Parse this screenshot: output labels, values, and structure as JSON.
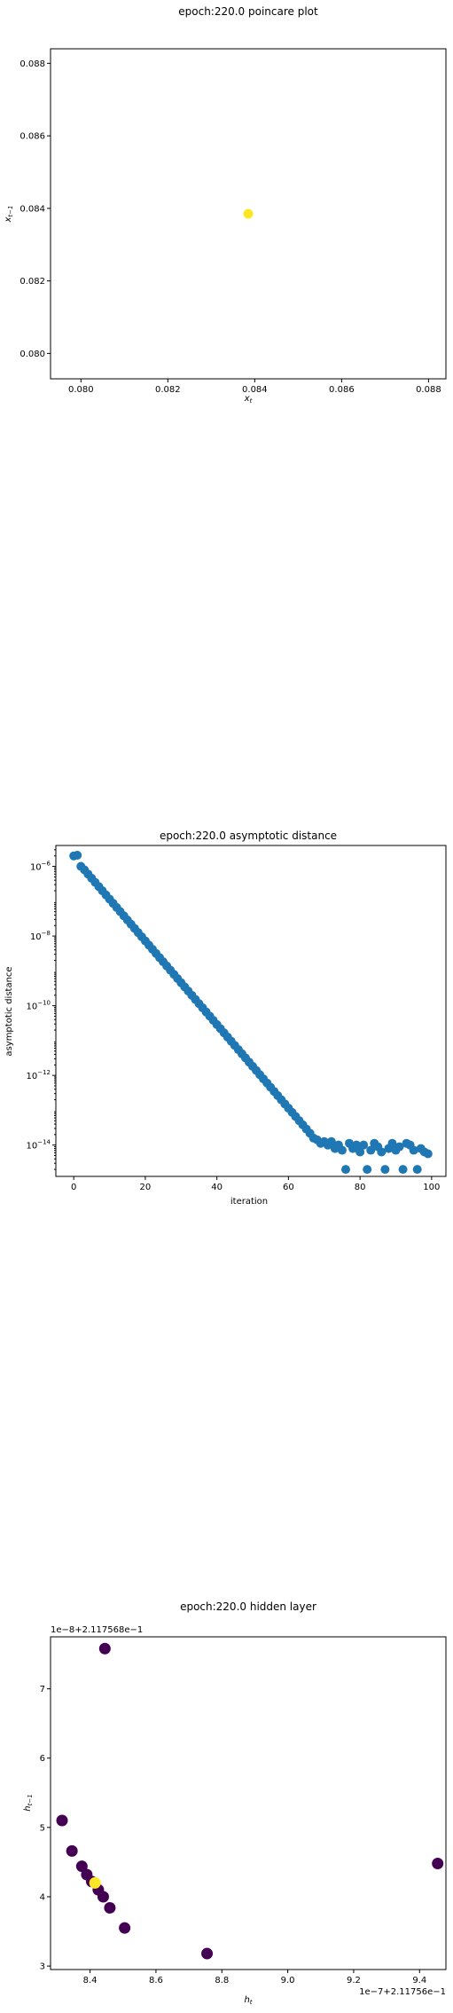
{
  "chart_data": [
    {
      "type": "scatter",
      "title": "epoch:220.0 poincare plot",
      "xlabel": "x_t",
      "ylabel": "x_{t-1}",
      "xlim": [
        0.0793,
        0.0884
      ],
      "ylim": [
        0.0793,
        0.0884
      ],
      "xticks": [
        "0.080",
        "0.082",
        "0.084",
        "0.086",
        "0.088"
      ],
      "yticks": [
        "0.080",
        "0.082",
        "0.084",
        "0.086",
        "0.088"
      ],
      "tick_values": [
        0.08,
        0.082,
        0.084,
        0.086,
        0.088
      ],
      "points": [
        {
          "x": 0.08385,
          "y": 0.08385
        }
      ],
      "color": "#fde725",
      "grid": false
    },
    {
      "type": "scatter",
      "title": "epoch:220.0 asymptotic distance",
      "xlabel": "iteration",
      "ylabel": "asymptotic distance",
      "xscale": "linear",
      "yscale": "log",
      "xlim": [
        -5,
        104
      ],
      "ylim_exp": [
        -14.9,
        -5.4
      ],
      "xticks": [
        "0",
        "20",
        "40",
        "60",
        "80",
        "100"
      ],
      "xtick_values": [
        0,
        20,
        40,
        60,
        80,
        100
      ],
      "ytick_exponents": [
        -6,
        -8,
        -10,
        -12,
        -14
      ],
      "color": "#1f77b4",
      "grid": false,
      "x": [
        0,
        1,
        2,
        3,
        4,
        5,
        6,
        7,
        8,
        9,
        10,
        11,
        12,
        13,
        14,
        15,
        16,
        17,
        18,
        19,
        20,
        21,
        22,
        23,
        24,
        25,
        26,
        27,
        28,
        29,
        30,
        31,
        32,
        33,
        34,
        35,
        36,
        37,
        38,
        39,
        40,
        41,
        42,
        43,
        44,
        45,
        46,
        47,
        48,
        49,
        50,
        51,
        52,
        53,
        54,
        55,
        56,
        57,
        58,
        59,
        60,
        61,
        62,
        63,
        64,
        65,
        66,
        67,
        68,
        69,
        70,
        71,
        72,
        73,
        74,
        75,
        76,
        77,
        78,
        79,
        80,
        81,
        82,
        83,
        84,
        85,
        86,
        87,
        88,
        89,
        90,
        91,
        92,
        93,
        94,
        95,
        96,
        97,
        98,
        99
      ],
      "log10_y": [
        -5.7,
        -5.68,
        -6.0,
        -6.1,
        -6.22,
        -6.34,
        -6.46,
        -6.58,
        -6.7,
        -6.82,
        -6.94,
        -7.06,
        -7.18,
        -7.3,
        -7.42,
        -7.54,
        -7.66,
        -7.78,
        -7.9,
        -8.02,
        -8.14,
        -8.26,
        -8.38,
        -8.5,
        -8.62,
        -8.74,
        -8.86,
        -8.98,
        -9.1,
        -9.22,
        -9.34,
        -9.46,
        -9.58,
        -9.7,
        -9.82,
        -9.94,
        -10.06,
        -10.18,
        -10.3,
        -10.42,
        -10.54,
        -10.66,
        -10.78,
        -10.9,
        -11.02,
        -11.14,
        -11.26,
        -11.38,
        -11.5,
        -11.62,
        -11.74,
        -11.86,
        -11.98,
        -12.1,
        -12.22,
        -12.34,
        -12.46,
        -12.58,
        -12.7,
        -12.82,
        -12.94,
        -13.06,
        -13.18,
        -13.3,
        -13.42,
        -13.54,
        -13.66,
        -13.8,
        -13.85,
        -13.95,
        -13.9,
        -14.0,
        -13.9,
        -14.1,
        -14.0,
        -14.15,
        -14.7,
        -13.95,
        -14.1,
        -14.0,
        -14.2,
        -14.0,
        -14.7,
        -14.15,
        -13.95,
        -14.05,
        -14.2,
        -14.7,
        -14.1,
        -13.95,
        -14.15,
        -14.05,
        -14.7,
        -13.95,
        -14.0,
        -14.15,
        -14.7,
        -14.1,
        -14.2,
        -14.25
      ]
    },
    {
      "type": "scatter",
      "title": "epoch:220.0 hidden layer",
      "xlabel": "h_t",
      "ylabel": "h_{t-1}",
      "x_offset_text": "1e−7+2.11756e−1",
      "y_offset_text": "1e−8+2.117568e−1",
      "xlim": [
        8.28,
        9.48
      ],
      "ylim": [
        2.95,
        7.75
      ],
      "xticks": [
        "8.4",
        "8.6",
        "8.8",
        "9.0",
        "9.2",
        "9.4"
      ],
      "xtick_values": [
        8.4,
        8.6,
        8.8,
        9.0,
        9.2,
        9.4
      ],
      "yticks": [
        "3",
        "4",
        "5",
        "6",
        "7"
      ],
      "ytick_values": [
        3,
        4,
        5,
        6,
        7
      ],
      "colormap": {
        "start": "#440154",
        "end": "#fde725"
      },
      "grid": false,
      "points": [
        {
          "x": 8.445,
          "y": 7.58,
          "c": 0.0
        },
        {
          "x": 8.315,
          "y": 5.1,
          "c": 0.0
        },
        {
          "x": 8.345,
          "y": 4.66,
          "c": 0.0
        },
        {
          "x": 8.375,
          "y": 4.44,
          "c": 0.0
        },
        {
          "x": 8.39,
          "y": 4.32,
          "c": 0.0
        },
        {
          "x": 8.405,
          "y": 4.22,
          "c": 0.0
        },
        {
          "x": 8.425,
          "y": 4.1,
          "c": 0.0
        },
        {
          "x": 8.44,
          "y": 4.0,
          "c": 0.0
        },
        {
          "x": 8.46,
          "y": 3.84,
          "c": 0.0
        },
        {
          "x": 8.505,
          "y": 3.55,
          "c": 0.0
        },
        {
          "x": 8.755,
          "y": 3.18,
          "c": 0.0
        },
        {
          "x": 9.455,
          "y": 4.48,
          "c": 0.0
        },
        {
          "x": 8.415,
          "y": 4.2,
          "c": 1.0
        }
      ]
    }
  ]
}
